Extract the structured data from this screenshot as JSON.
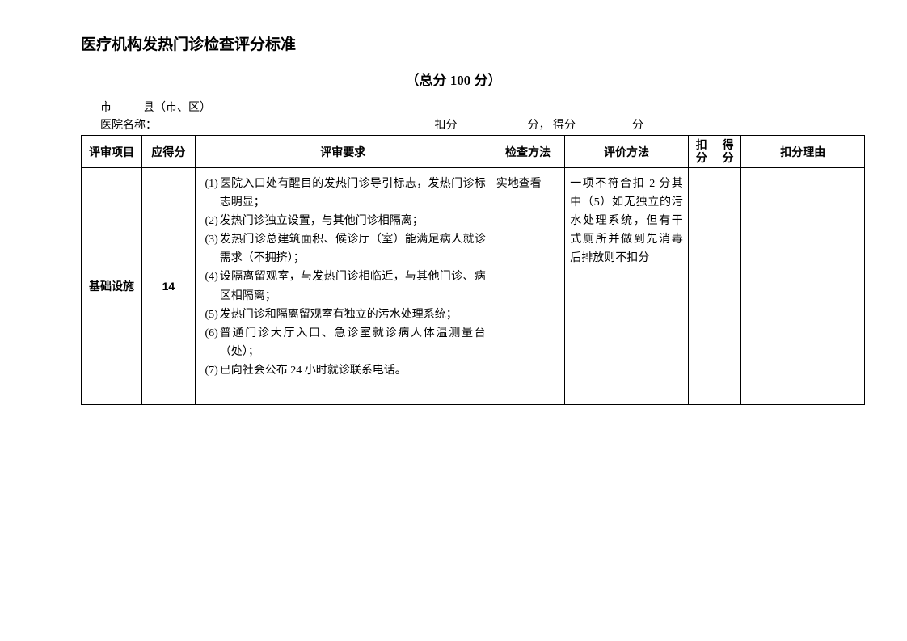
{
  "title": "医疗机构发热门诊检查评分标准",
  "subtitle": "（总分 100 分）",
  "info": {
    "city_prefix": "市",
    "county_suffix": "县（市、区）",
    "hospital_label": "医院名称：",
    "deduct_label": "扣分",
    "score_unit": "分，",
    "final_label": "得分",
    "score_unit2": "分"
  },
  "table": {
    "headers": {
      "item": "评审项目",
      "max_score": "应得分",
      "requirements": "评审要求",
      "check_method": "检查方法",
      "eval_method": "评价方法",
      "deduct": "扣分",
      "final_score": "得分",
      "reason": "扣分理由"
    },
    "rows": [
      {
        "item": "基础设施",
        "max_score": "14",
        "requirements": [
          {
            "num": "(1)",
            "text": "医院入口处有醒目的发热门诊导引标志，发热门诊标志明显；"
          },
          {
            "num": "(2)",
            "text": "发热门诊独立设置，与其他门诊相隔离；"
          },
          {
            "num": "(3)",
            "text": "发热门诊总建筑面积、候诊厅（室）能满足病人就诊需求（不拥挤）；"
          },
          {
            "num": "(4)",
            "text": "设隔离留观室，与发热门诊相临近，与其他门诊、病区相隔离；"
          },
          {
            "num": "(5)",
            "text": "发热门诊和隔离留观室有独立的污水处理系统；"
          },
          {
            "num": "(6)",
            "text": "普通门诊大厅入口、急诊室就诊病人体温测量台（处）；"
          },
          {
            "num": "(7)",
            "text": "已向社会公布 24 小时就诊联系电话。"
          }
        ],
        "check_method": "实地查看",
        "eval_method": "一项不符合扣 2 分其中（5）如无独立的污水处理系统，但有干式厕所并做到先消毒后排放则不扣分",
        "deduct": "",
        "final_score": "",
        "reason": ""
      }
    ]
  }
}
